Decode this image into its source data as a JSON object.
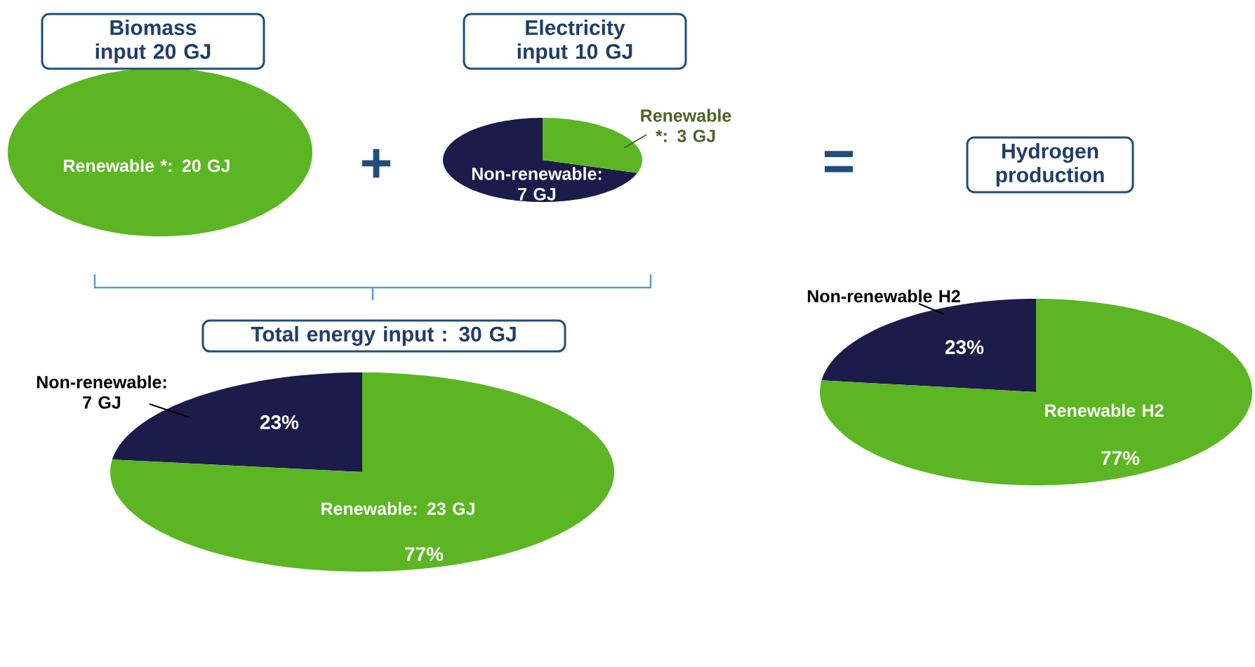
{
  "chart_data": [
    {
      "type": "pie",
      "title": "Biomass input 20 GJ",
      "categories": [
        "Renewable *: 20 GJ"
      ],
      "values": [
        20
      ],
      "colors": [
        "#5cb623"
      ],
      "annotations": [
        "+"
      ]
    },
    {
      "type": "pie",
      "title": "Electricity input 10 GJ",
      "categories": [
        "Non-renewable: 7 GJ",
        "Renewable *: 3 GJ"
      ],
      "values": [
        7,
        3
      ],
      "colors": [
        "#1c1c4a",
        "#5cb623"
      ],
      "annotations": [
        "="
      ]
    },
    {
      "type": "pie",
      "title": "Total energy input : 30 GJ",
      "categories": [
        "Non-renewable: 7 GJ",
        "Renewable: 23 GJ"
      ],
      "values": [
        23,
        77
      ],
      "colors": [
        "#1c1c4a",
        "#5cb623"
      ],
      "value_labels": [
        "23%",
        "77%"
      ]
    },
    {
      "type": "pie",
      "title": "Hydrogen production",
      "categories": [
        "Non-renewable H2",
        "Renewable H2"
      ],
      "values": [
        23,
        77
      ],
      "colors": [
        "#1c1c4a",
        "#5cb623"
      ],
      "value_labels": [
        "23%",
        "77%"
      ]
    }
  ]
}
